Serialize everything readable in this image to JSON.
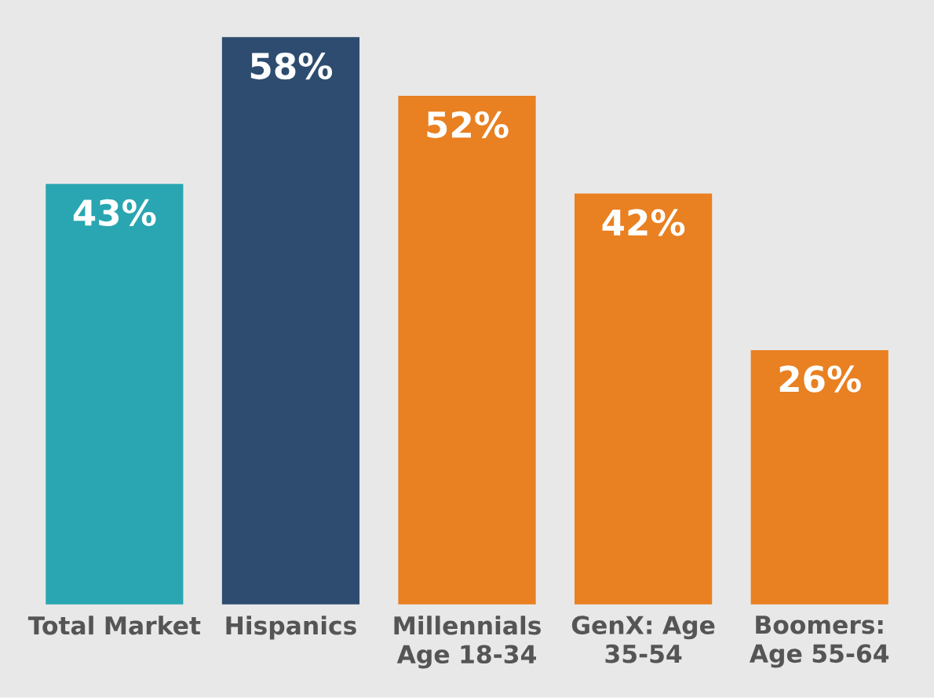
{
  "chart_data": {
    "type": "bar",
    "categories": [
      "Total Market",
      "Hispanics",
      "Millennials Age 18-34",
      "GenX: Age 35-54",
      "Boomers: Age 55-64"
    ],
    "values": [
      43,
      58,
      52,
      42,
      26
    ],
    "colors": [
      "#29a6b1",
      "#2d4c6f",
      "#e98021",
      "#e98021",
      "#e98021"
    ],
    "value_labels": [
      "43%",
      "58%",
      "52%",
      "42%",
      "26%"
    ]
  }
}
